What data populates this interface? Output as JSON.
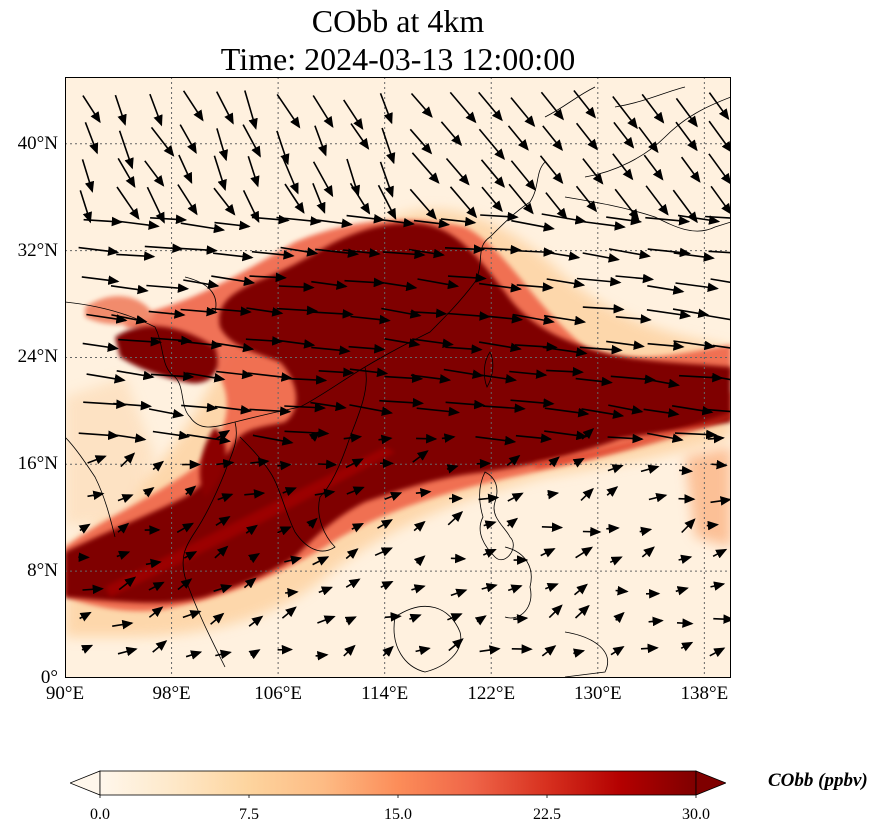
{
  "title": {
    "line1": "CObb at 4km",
    "line2": "Time: 2024-03-13 12:00:00"
  },
  "map": {
    "lon_range": [
      90,
      140
    ],
    "lat_range": [
      0,
      45
    ],
    "lat_ticks": [
      {
        "value": 40,
        "label": "40°N"
      },
      {
        "value": 32,
        "label": "32°N"
      },
      {
        "value": 24,
        "label": "24°N"
      },
      {
        "value": 16,
        "label": "16°N"
      },
      {
        "value": 8,
        "label": "8°N"
      },
      {
        "value": 0,
        "label": "0°"
      }
    ],
    "lon_ticks": [
      {
        "value": 90,
        "label": "90°E"
      },
      {
        "value": 98,
        "label": "98°E"
      },
      {
        "value": 106,
        "label": "106°E"
      },
      {
        "value": 114,
        "label": "114°E"
      },
      {
        "value": 122,
        "label": "122°E"
      },
      {
        "value": 130,
        "label": "130°E"
      },
      {
        "value": 138,
        "label": "138°E"
      }
    ],
    "gridlines": true,
    "colors": {
      "background": "#fff1df",
      "plume": "#7f0000",
      "mid": "#e4572c",
      "low": "#fdbf84",
      "coast": "#000000"
    }
  },
  "colorbar": {
    "label": "CObb (ppbv)",
    "min": 0,
    "max": 30,
    "ticks": [
      {
        "value": 0,
        "label": "0.0"
      },
      {
        "value": 7.5,
        "label": "7.5"
      },
      {
        "value": 15,
        "label": "15.0"
      },
      {
        "value": 22.5,
        "label": "22.5"
      },
      {
        "value": 30,
        "label": "30.0"
      }
    ],
    "cmap": [
      "#fff7ec",
      "#fee8c8",
      "#fdd49e",
      "#fdbb84",
      "#fc8d59",
      "#ef6548",
      "#d7301f",
      "#b30000",
      "#7f0000"
    ],
    "extend": "both"
  }
}
